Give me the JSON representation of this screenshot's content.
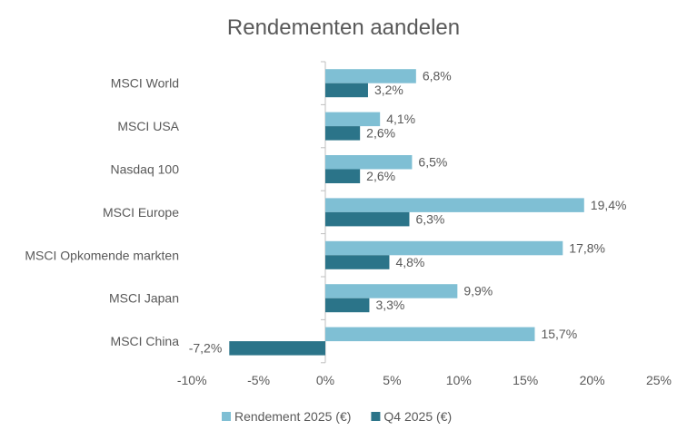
{
  "chart_data": {
    "type": "bar",
    "orientation": "horizontal",
    "title": "Rendementen aandelen",
    "categories": [
      "MSCI World",
      "MSCI USA",
      "Nasdaq 100",
      "MSCI Europe",
      "MSCI Opkomende markten",
      "MSCI Japan",
      "MSCI China"
    ],
    "series": [
      {
        "name": "Rendement 2025 (€)",
        "color": "#7fbfd4",
        "values": [
          6.8,
          4.1,
          6.5,
          19.4,
          17.8,
          9.9,
          15.7
        ],
        "labels": [
          "6,8%",
          "4,1%",
          "6,5%",
          "19,4%",
          "17,8%",
          "9,9%",
          "15,7%"
        ]
      },
      {
        "name": "Q4 2025  (€)",
        "color": "#2b7489",
        "values": [
          3.2,
          2.6,
          2.6,
          6.3,
          4.8,
          3.3,
          -7.2
        ],
        "labels": [
          "3,2%",
          "2,6%",
          "2,6%",
          "6,3%",
          "4,8%",
          "3,3%",
          "-7,2%"
        ]
      }
    ],
    "xlim": [
      -10,
      25
    ],
    "xticks": [
      -10,
      -5,
      0,
      5,
      10,
      15,
      20,
      25
    ],
    "xtick_labels": [
      "-10%",
      "-5%",
      "0%",
      "5%",
      "10%",
      "15%",
      "20%",
      "25%"
    ],
    "grid": false,
    "legend": "bottom"
  }
}
